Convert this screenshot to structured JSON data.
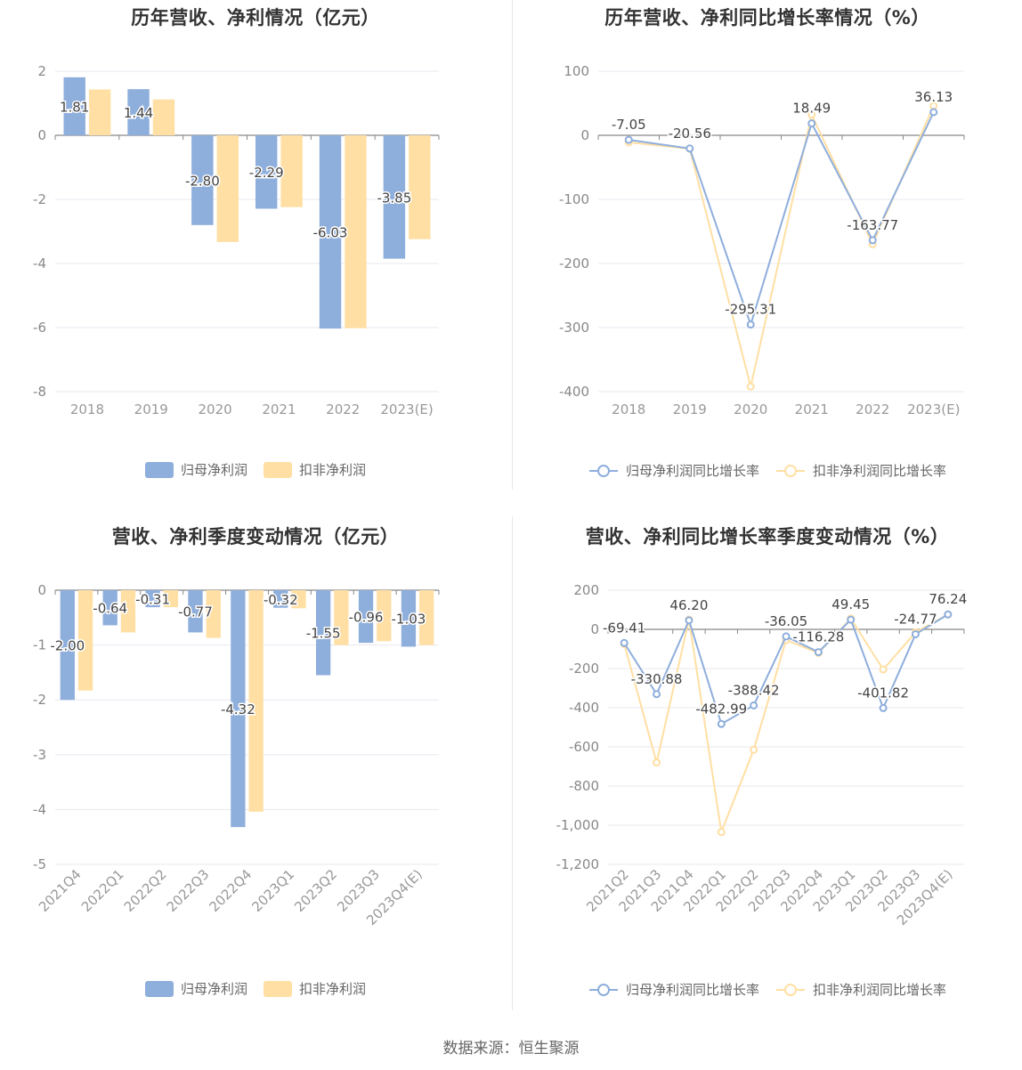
{
  "colors": {
    "blue": "#8eaedc",
    "yellow": "#ffdfa3",
    "blue_line": "#8eaedc",
    "yellow_line": "#ffdfa3",
    "axis": "#999999",
    "grid": "#e8e8f2",
    "zero_line": "#888888",
    "label": "#444444",
    "tick": "#888888"
  },
  "source": "数据来源：恒生聚源",
  "chart_data": [
    {
      "id": "annual_profit",
      "type": "bar",
      "title": "历年营收、净利情况（亿元）",
      "categories": [
        "2018",
        "2019",
        "2020",
        "2021",
        "2022",
        "2023(E)"
      ],
      "series": [
        {
          "name": "归母净利润",
          "values": [
            1.81,
            1.44,
            -2.8,
            -2.29,
            -6.03,
            -3.85
          ],
          "labels": [
            "1.81",
            "1.44",
            "-2.80",
            "-2.29",
            "-6.03",
            "-3.85"
          ]
        },
        {
          "name": "扣非净利润",
          "values": [
            1.43,
            1.12,
            -3.33,
            -2.24,
            -6.02,
            -3.24
          ]
        }
      ],
      "ylim": [
        -8,
        2
      ],
      "yticks": [
        "2",
        "0",
        "-2",
        "-4",
        "-6",
        "-8"
      ],
      "grid": true,
      "legend": "bottom-center"
    },
    {
      "id": "annual_growth",
      "type": "line",
      "title": "历年营收、净利同比增长率情况（%）",
      "categories": [
        "2018",
        "2019",
        "2020",
        "2021",
        "2022",
        "2023(E)"
      ],
      "series": [
        {
          "name": "归母净利润同比增长率",
          "values": [
            -7.05,
            -20.56,
            -295.31,
            18.49,
            -163.77,
            36.13
          ],
          "labels": [
            "-7.05",
            "-20.56",
            "-295.31",
            "18.49",
            "-163.77",
            "36.13"
          ]
        },
        {
          "name": "扣非净利润同比增长率",
          "values": [
            -11,
            -21,
            -392,
            32,
            -170,
            46
          ]
        }
      ],
      "ylim": [
        -400,
        100
      ],
      "yticks": [
        "100",
        "0",
        "-100",
        "-200",
        "-300",
        "-400"
      ],
      "grid": true,
      "legend": "bottom-center"
    },
    {
      "id": "quarter_profit",
      "type": "bar",
      "title": "营收、净利季度变动情况（亿元）",
      "categories": [
        "2021Q4",
        "2022Q1",
        "2022Q2",
        "2022Q3",
        "2022Q4",
        "2023Q1",
        "2023Q2",
        "2023Q3",
        "2023Q4(E)"
      ],
      "series": [
        {
          "name": "归母净利润",
          "values": [
            -2.0,
            -0.64,
            -0.31,
            -0.77,
            -4.32,
            -0.32,
            -1.55,
            -0.96,
            -1.03
          ],
          "labels": [
            "-2.00",
            "-0.64",
            "-0.31",
            "-0.77",
            "-4.32",
            "-0.32",
            "-1.55",
            "-0.96",
            "-1.03"
          ]
        },
        {
          "name": "扣非净利润",
          "values": [
            -1.83,
            -0.77,
            -0.31,
            -0.87,
            -4.04,
            -0.33,
            -1.0,
            -0.93,
            -1.0
          ]
        }
      ],
      "ylim": [
        -5,
        0
      ],
      "yticks": [
        "0",
        "-1",
        "-2",
        "-3",
        "-4",
        "-5"
      ],
      "grid": true,
      "legend": "bottom-center"
    },
    {
      "id": "quarter_growth",
      "type": "line",
      "title": "营收、净利同比增长率季度变动情况（%）",
      "categories": [
        "2021Q2",
        "2021Q3",
        "2021Q4",
        "2022Q1",
        "2022Q2",
        "2022Q3",
        "2022Q4",
        "2023Q1",
        "2023Q2",
        "2023Q3",
        "2023Q4(E)"
      ],
      "series": [
        {
          "name": "归母净利润同比增长率",
          "values": [
            -69.41,
            -330.88,
            46.2,
            -482.99,
            -388.42,
            -36.05,
            -116.28,
            49.45,
            -401.82,
            -24.77,
            76.24
          ],
          "labels": [
            "-69.41",
            "-330.88",
            "46.20",
            "-482.99",
            "-388.42",
            "-36.05",
            "-116.28",
            "49.45",
            "-401.82",
            "-24.77",
            "76.24"
          ]
        },
        {
          "name": "扣非净利润同比增长率",
          "values": [
            -75,
            -680,
            50,
            -1035,
            -615,
            -55,
            -120,
            55,
            -205,
            -15,
            76
          ]
        }
      ],
      "ylim": [
        -1200,
        200
      ],
      "yticks": [
        "200",
        "0",
        "-200",
        "-400",
        "-600",
        "-800",
        "-1,000",
        "-1,200"
      ],
      "grid": true,
      "legend": "bottom-center"
    }
  ]
}
